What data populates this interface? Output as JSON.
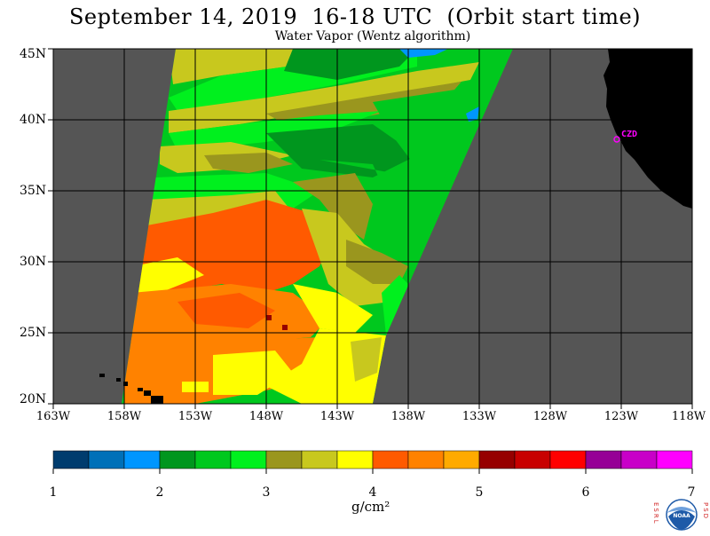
{
  "header": {
    "title": "September 14, 2019  16-18 UTC  (Orbit start time)",
    "subtitle": "Water Vapor (Wentz algorithm)"
  },
  "map": {
    "lat_labels": [
      "45N",
      "40N",
      "35N",
      "30N",
      "25N",
      "20N"
    ],
    "lon_labels": [
      "163W",
      "158W",
      "153W",
      "148W",
      "143W",
      "138W",
      "133W",
      "128W",
      "123W",
      "118W"
    ],
    "lat_range": [
      20,
      45
    ],
    "lon_range": [
      -163,
      -118
    ],
    "colors": {
      "no_data": "#555555",
      "land": "#000000",
      "grid": "#000000",
      "city": "#ff00ff"
    },
    "city_label": "CZD"
  },
  "colorbar": {
    "tick_labels": [
      "1",
      "2",
      "3",
      "4",
      "5",
      "6",
      "7"
    ],
    "units": "g/cm²",
    "colors": [
      "#003c6e",
      "#0070b8",
      "#0096ff",
      "#00961e",
      "#00c81e",
      "#00f01e",
      "#9a961e",
      "#c8c81e",
      "#ffff00",
      "#ff5a00",
      "#ff8200",
      "#ffaa00",
      "#960000",
      "#c80000",
      "#ff0000",
      "#960096",
      "#c800c8",
      "#ff00ff"
    ]
  },
  "logo": {
    "left_letters": "ESRL",
    "right_letters": "PSD",
    "center": "NOAA"
  }
}
